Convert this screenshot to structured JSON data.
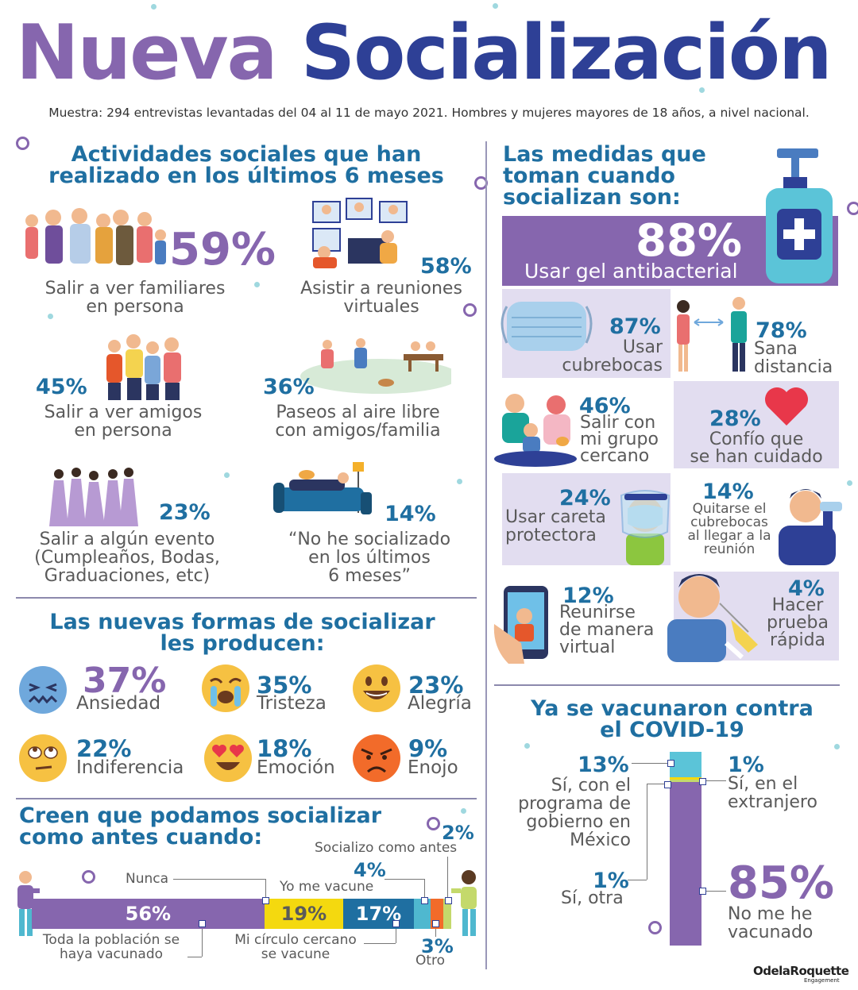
{
  "header": {
    "title_part1": "Nueva",
    "title_part2": "Socialización",
    "sample": "Muestra: 294 entrevistas levantadas del 04 al 11 de mayo 2021. Hombres y mujeres mayores de 18 años, a nivel nacional."
  },
  "activities": {
    "title_line1": "Actividades sociales que han",
    "title_line2": "realizado en los últimos 6 meses",
    "items": [
      {
        "pct": "59%",
        "line1": "Salir a ver familiares",
        "line2": "en persona"
      },
      {
        "pct": "58%",
        "line1": "Asistir a reuniones",
        "line2": "virtuales"
      },
      {
        "pct": "45%",
        "line1": "Salir a ver amigos",
        "line2": "en persona"
      },
      {
        "pct": "36%",
        "line1": "Paseos al aire libre",
        "line2": "con amigos/familia"
      },
      {
        "pct": "23%",
        "line1": "Salir a algún evento",
        "line2": "(Cumpleaños, Bodas,",
        "line3": "Graduaciones, etc)"
      },
      {
        "pct": "14%",
        "line1": "“No he socializado",
        "line2": "en los últimos",
        "line3": "6 meses”"
      }
    ]
  },
  "feelings": {
    "title_line1": "Las nuevas formas de socializar",
    "title_line2": "les producen:",
    "items": [
      {
        "pct": "37%",
        "label": "Ansiedad",
        "icon": "anxious-face-icon",
        "color": "#6fa8dc"
      },
      {
        "pct": "35%",
        "label": "Tristeza",
        "icon": "crying-face-icon",
        "color": "#f6c142"
      },
      {
        "pct": "23%",
        "label": "Alegría",
        "icon": "happy-face-icon",
        "color": "#f6c142"
      },
      {
        "pct": "22%",
        "label": "Indiferencia",
        "icon": "eye-roll-face-icon",
        "color": "#f6c142"
      },
      {
        "pct": "18%",
        "label": "Emoción",
        "icon": "heart-eyes-face-icon",
        "color": "#f6c142"
      },
      {
        "pct": "9%",
        "label": "Enojo",
        "icon": "angry-face-icon",
        "color": "#f26b2a"
      }
    ]
  },
  "when": {
    "title_line1": "Creen que podamos socializar",
    "title_line2": "como antes cuando:",
    "segments": [
      {
        "pct": "56%",
        "label_line1": "Toda la población se",
        "label_line2": "haya vacunado",
        "value": 56,
        "color": "#8666ae"
      },
      {
        "pct": "19%",
        "label": "Nunca",
        "value": 19,
        "color": "#f4d90f"
      },
      {
        "pct": "17%",
        "label_line1": "Mi círculo cercano",
        "label_line2": "se vacune",
        "value": 17,
        "color": "#1f6fa1"
      },
      {
        "pct": "4%",
        "label": "Yo me vacune",
        "value": 4,
        "color": "#4fb8cf"
      },
      {
        "pct": "3%",
        "label": "Otro",
        "value": 3,
        "color": "#f26b2a"
      },
      {
        "pct": "2%",
        "label": "Socializo como antes",
        "value": 2,
        "color": "#c4d96b"
      }
    ]
  },
  "measures": {
    "title_line1": "Las medidas que",
    "title_line2": "toman cuando",
    "title_line3": "socializan son:",
    "items": [
      {
        "pct": "88%",
        "line1": "Usar gel antibacterial"
      },
      {
        "pct": "87%",
        "line1": "Usar",
        "line2": "cubrebocas"
      },
      {
        "pct": "78%",
        "line1": "Sana",
        "line2": "distancia"
      },
      {
        "pct": "46%",
        "line1": "Salir con",
        "line2": "mi grupo",
        "line3": "cercano"
      },
      {
        "pct": "28%",
        "line1": "Confío que",
        "line2": "se han cuidado"
      },
      {
        "pct": "24%",
        "line1": "Usar careta",
        "line2": "protectora"
      },
      {
        "pct": "14%",
        "line1": "Quitarse el",
        "line2": "cubrebocas",
        "line3": "al llegar a la",
        "line4": "reunión"
      },
      {
        "pct": "12%",
        "line1": "Reunirse",
        "line2": "de manera",
        "line3": "virtual"
      },
      {
        "pct": "4%",
        "line1": "Hacer",
        "line2": "prueba",
        "line3": "rápida"
      }
    ]
  },
  "vaccine": {
    "title_line1": "Ya se vacunaron contra",
    "title_line2": "el COVID-19",
    "segments": [
      {
        "pct": "13%",
        "line1": "Sí, con el",
        "line2": "programa de",
        "line3": "gobierno en",
        "line4": "México",
        "value": 13,
        "color": "#5bc4d8"
      },
      {
        "pct": "1%",
        "line1": "Sí, en el",
        "line2": "extranjero",
        "value": 1,
        "color": "#f4d90f"
      },
      {
        "pct": "1%",
        "line1": "Sí, otra",
        "value": 1,
        "color": "#c4d96b"
      },
      {
        "pct": "85%",
        "line1": "No me he",
        "line2": "vacunado",
        "value": 85,
        "color": "#8666ae"
      }
    ]
  },
  "footer": {
    "brand": "OdelaRoquette",
    "brand_sub": "Engagement"
  }
}
